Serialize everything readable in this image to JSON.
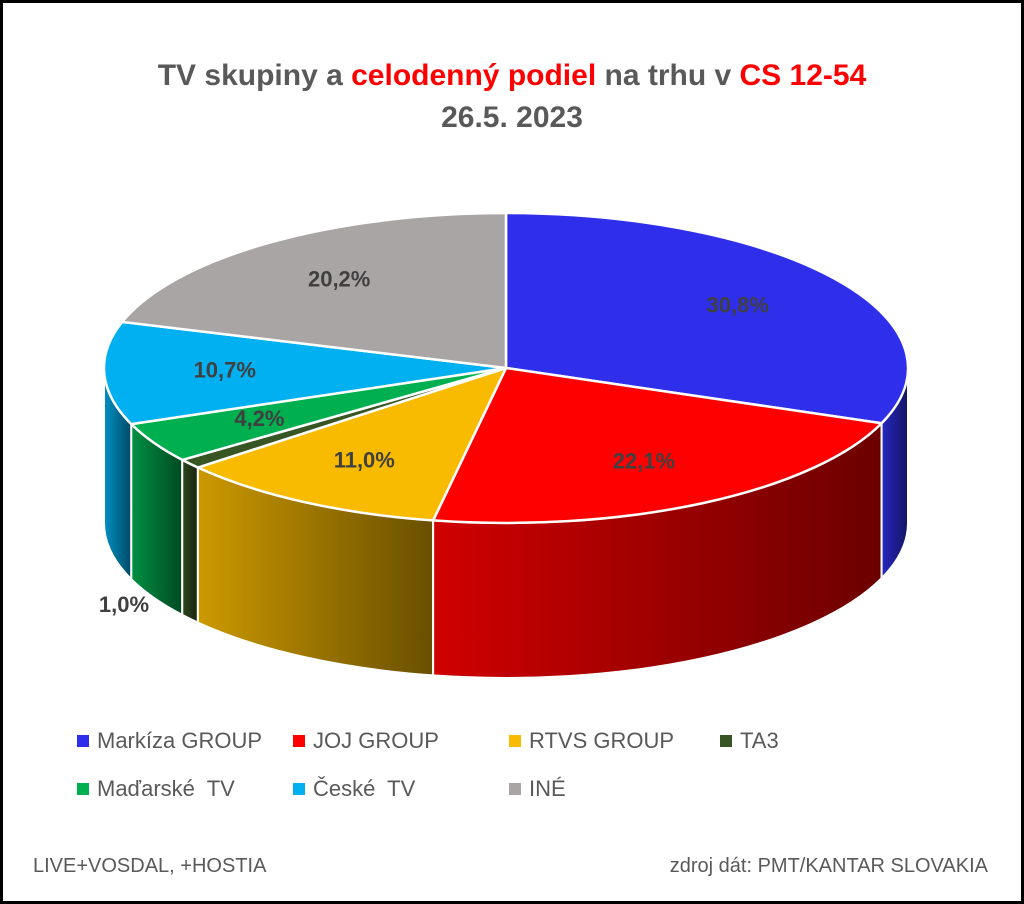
{
  "title": {
    "part1": "TV skupiny a ",
    "part2": "celodenný podiel",
    "part3": " na trhu v ",
    "part4": "CS 12-54",
    "subtitle": "26.5. 2023"
  },
  "chart_data": {
    "type": "pie",
    "style": "3d",
    "categories": [
      "Markíza GROUP",
      "JOJ GROUP",
      "RTVS GROUP",
      "TA3",
      "Maďarské  TV",
      "České  TV",
      "INÉ"
    ],
    "values": [
      30.8,
      22.1,
      11.0,
      1.0,
      4.2,
      10.7,
      20.2
    ],
    "labels": [
      "30,8%",
      "22,1%",
      "11,0%",
      "1,0%",
      "4,2%",
      "10,7%",
      "20,2%"
    ],
    "colors": [
      "#2f2feb",
      "#ff0000",
      "#f9bb00",
      "#375623",
      "#00b050",
      "#00b0f0",
      "#a9a5a5"
    ],
    "legend_position": "bottom"
  },
  "footer": {
    "left": "LIVE+VOSDAL,  +HOSTIA",
    "right": "zdroj dát: PMT/KANTAR SLOVAKIA"
  }
}
